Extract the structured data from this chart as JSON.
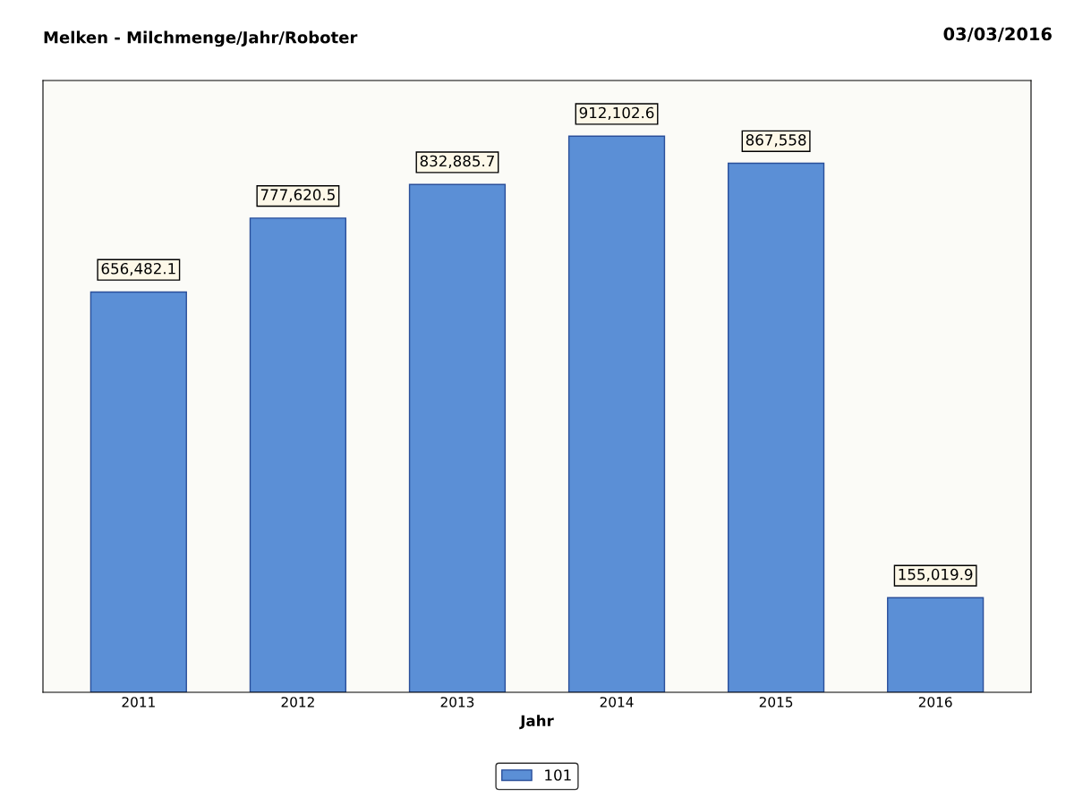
{
  "chart_data": {
    "type": "bar",
    "title": "Melken - Milchmenge/Jahr/Roboter",
    "xlabel": "Jahr",
    "annotations": [
      "03/03/2016"
    ],
    "categories": [
      "2011",
      "2012",
      "2013",
      "2014",
      "2015",
      "2016"
    ],
    "series": [
      {
        "name": "101",
        "color": "#5b8fd6",
        "values": [
          656482.1,
          777620.5,
          832885.7,
          912102.6,
          867558,
          155019.9
        ],
        "value_labels": [
          "656,482.1",
          "777,620.5",
          "832,885.7",
          "912,102.6",
          "867,558",
          "155,019.9"
        ]
      }
    ],
    "legend": "bottom",
    "grid": false
  }
}
